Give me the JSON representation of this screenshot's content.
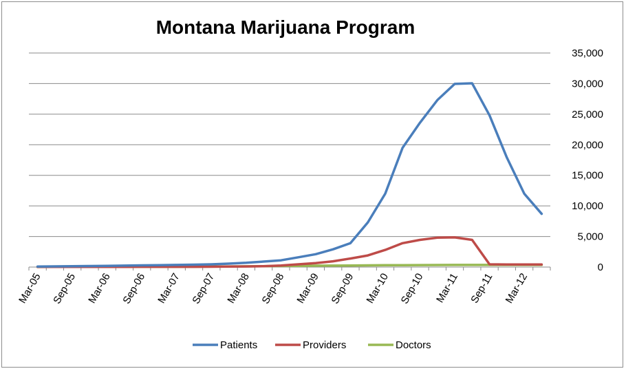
{
  "chart_data": {
    "type": "line",
    "title": "Montana Marijuana Program",
    "xlabel": "",
    "ylabel": "",
    "x_tick_labels": [
      "Mar-05",
      "Sep-05",
      "Mar-06",
      "Sep-06",
      "Mar-07",
      "Sep-07",
      "Mar-08",
      "Sep-08",
      "Mar-09",
      "Sep-09",
      "Mar-10",
      "Sep-10",
      "Mar-11",
      "Sep-11",
      "Mar-12"
    ],
    "x": [
      "Mar-05",
      "Jun-05",
      "Sep-05",
      "Dec-05",
      "Mar-06",
      "Jun-06",
      "Sep-06",
      "Dec-06",
      "Mar-07",
      "Jun-07",
      "Sep-07",
      "Dec-07",
      "Mar-08",
      "Jun-08",
      "Sep-08",
      "Dec-08",
      "Mar-09",
      "Jun-09",
      "Sep-09",
      "Dec-09",
      "Mar-10",
      "Jun-10",
      "Sep-10",
      "Dec-10",
      "Mar-11",
      "Jun-11",
      "Sep-11",
      "Dec-11",
      "Mar-12",
      "Jun-12"
    ],
    "series": [
      {
        "name": "Patients",
        "color": "#4a7ebb",
        "values": [
          90,
          110,
          140,
          170,
          200,
          240,
          280,
          320,
          350,
          390,
          450,
          560,
          700,
          900,
          1100,
          1600,
          2100,
          2900,
          3900,
          7300,
          12000,
          19500,
          23600,
          27300,
          29950,
          30050,
          24800,
          17900,
          12000,
          8700
        ]
      },
      {
        "name": "Providers",
        "color": "#be4b48",
        "values": [
          20,
          20,
          30,
          30,
          30,
          30,
          40,
          40,
          50,
          50,
          60,
          80,
          100,
          150,
          250,
          450,
          650,
          950,
          1400,
          1900,
          2800,
          3900,
          4450,
          4800,
          4850,
          4450,
          450,
          430,
          430,
          430
        ]
      },
      {
        "name": "Doctors",
        "color": "#98b954",
        "values": [
          10,
          20,
          20,
          30,
          30,
          40,
          40,
          50,
          50,
          60,
          80,
          100,
          120,
          150,
          180,
          200,
          220,
          240,
          260,
          280,
          300,
          320,
          330,
          340,
          350,
          350,
          350,
          350,
          350,
          350
        ]
      }
    ],
    "y_tick_labels": [
      "0",
      "5,000",
      "10,000",
      "15,000",
      "20,000",
      "25,000",
      "30,000",
      "35,000"
    ],
    "ylim": [
      0,
      35000
    ],
    "grid": true,
    "legend_position": "bottom"
  }
}
